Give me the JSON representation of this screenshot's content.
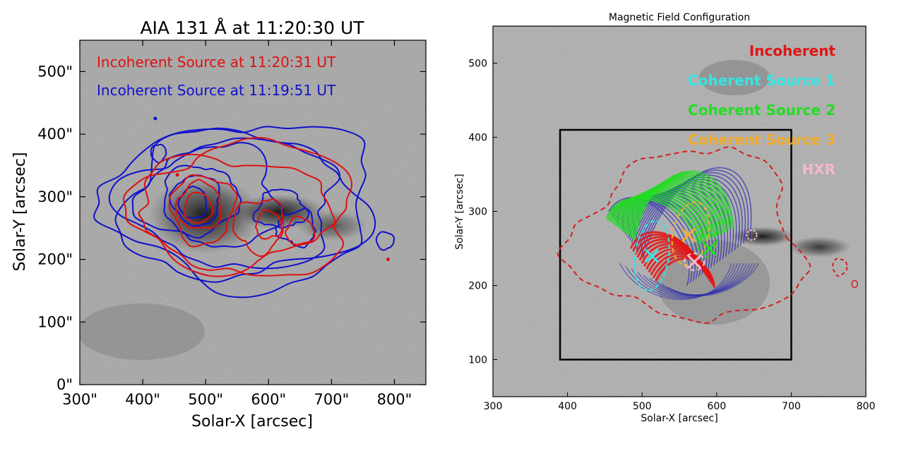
{
  "chart_data": [
    {
      "type": "scatter",
      "title": "AIA 131 Å at 11:20:30 UT",
      "xlabel": "Solar-X [arcsec]",
      "ylabel": "Solar-Y [arcsec]",
      "xlim": [
        300,
        850
      ],
      "ylim": [
        0,
        550
      ],
      "xticks": [
        "300\"",
        "400\"",
        "500\"",
        "600\"",
        "700\"",
        "800\""
      ],
      "yticks": [
        "0\"",
        "100\"",
        "200\"",
        "300\"",
        "400\"",
        "500\""
      ],
      "legend_placement": "top-left",
      "series": [
        {
          "name": "Incoherent Source at 11:20:31 UT",
          "color": "#dd1111",
          "centroids": [
            [
              490,
              290
            ],
            [
              600,
              255
            ],
            [
              650,
              240
            ]
          ]
        },
        {
          "name": "Incoherent Source at 11:19:51 UT",
          "color": "#1111cc",
          "centroids": [
            [
              480,
              290
            ],
            [
              600,
              280
            ],
            [
              780,
              230
            ]
          ]
        }
      ]
    },
    {
      "type": "scatter",
      "title": "Magnetic Field Configuration",
      "xlabel": "Solar-X [arcsec]",
      "ylabel": "Solar-Y [arcsec]",
      "xlim": [
        300,
        800
      ],
      "ylim": [
        50,
        550
      ],
      "xticks": [
        "300",
        "400",
        "500",
        "600",
        "700",
        "800"
      ],
      "yticks": [
        "100",
        "200",
        "300",
        "400",
        "500"
      ],
      "legend_placement": "top-right",
      "box": {
        "x": [
          390,
          700
        ],
        "y": [
          100,
          410
        ]
      },
      "series": [
        {
          "name": "Incoherent",
          "color": "#e31414"
        },
        {
          "name": "Coherent Source 1",
          "color": "#33e6e6",
          "marker": [
            513,
            240
          ]
        },
        {
          "name": "Coherent Source 2",
          "color": "#22dd22",
          "marker": [
            590,
            250
          ]
        },
        {
          "name": "Coherent Source 3",
          "color": "#f2ad2a",
          "marker": [
            562,
            268
          ]
        },
        {
          "name": "HXR",
          "color": "#f4b8c8",
          "marker": [
            570,
            232
          ]
        }
      ]
    }
  ]
}
